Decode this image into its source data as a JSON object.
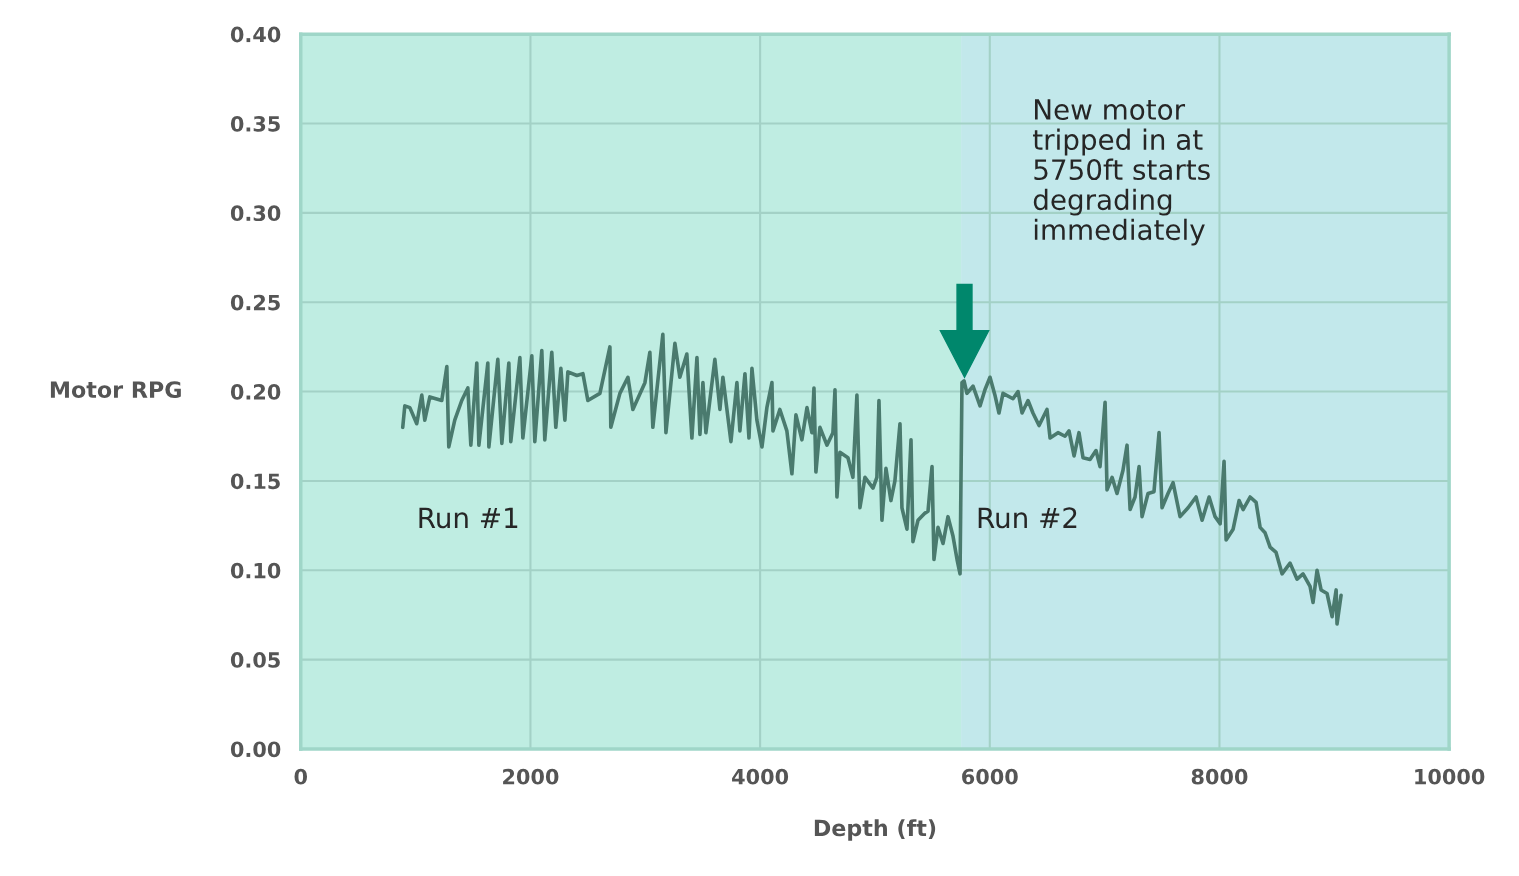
{
  "chart_data": {
    "type": "line",
    "xlabel": "Depth (ft)",
    "ylabel": "Motor RPG",
    "xlim": [
      0,
      10000
    ],
    "xticks": [
      0,
      2000,
      4000,
      6000,
      8000,
      10000
    ],
    "ylim": [
      0,
      0.4
    ],
    "yticks": [
      {
        "value": 0,
        "label": "0.00"
      },
      {
        "value": 0.05,
        "label": "0.05"
      },
      {
        "value": 0.1,
        "label": "0.10"
      },
      {
        "value": 0.15,
        "label": "0.15"
      },
      {
        "value": 0.2,
        "label": "0.20"
      },
      {
        "value": 0.25,
        "label": "0.25"
      },
      {
        "value": 0.3,
        "label": "0.30"
      },
      {
        "value": 0.35,
        "label": "0.35"
      },
      {
        "value": 0.4,
        "label": "0.40"
      }
    ],
    "grid": true,
    "marker": "none",
    "line_style": "solid",
    "bands": [
      {
        "axis": "x",
        "from": 0,
        "to": 5750,
        "color": "#bfede2"
      },
      {
        "axis": "x",
        "from": 5750,
        "to": 10000,
        "color": "#c2e8eb"
      }
    ],
    "annotations": [
      "New motor tripped in at 5750ft starts degrading immediately",
      "Run #1",
      "Run #2"
    ],
    "series": [
      {
        "color": "#4a7a6e",
        "x": [
          888,
          906,
          950,
          1010,
          1054,
          1080,
          1124,
          1228,
          1272,
          1289,
          1341,
          1402,
          1455,
          1481,
          1533,
          1551,
          1629,
          1638,
          1716,
          1751,
          1812,
          1829,
          1908,
          1934,
          2012,
          2038,
          2099,
          2125,
          2186,
          2221,
          2265,
          2300,
          2326,
          2404,
          2457,
          2500,
          2605,
          2692,
          2700,
          2779,
          2849,
          2892,
          2997,
          3040,
          3066,
          3153,
          3180,
          3258,
          3301,
          3362,
          3406,
          3450,
          3476,
          3502,
          3528,
          3606,
          3650,
          3676,
          3746,
          3798,
          3824,
          3868,
          3903,
          3929,
          3972,
          4016,
          4059,
          4103,
          4112,
          4172,
          4233,
          4277,
          4312,
          4364,
          4408,
          4451,
          4469,
          4486,
          4521,
          4582,
          4634,
          4652,
          4669,
          4695,
          4765,
          4808,
          4843,
          4869,
          4913,
          4983,
          5017,
          5035,
          5061,
          5096,
          5139,
          5174,
          5218,
          5235,
          5279,
          5314,
          5331,
          5375,
          5436,
          5462,
          5497,
          5514,
          5549,
          5593,
          5636,
          5680,
          5715,
          5741,
          5758,
          5776,
          5801,
          5854,
          5915,
          5958,
          6002,
          6045,
          6080,
          6115,
          6202,
          6246,
          6281,
          6333,
          6376,
          6429,
          6498,
          6525,
          6594,
          6655,
          6690,
          6734,
          6777,
          6812,
          6873,
          6925,
          6960,
          7004,
          7021,
          7065,
          7108,
          7160,
          7195,
          7222,
          7265,
          7300,
          7326,
          7378,
          7430,
          7474,
          7500,
          7552,
          7596,
          7657,
          7727,
          7796,
          7849,
          7910,
          7962,
          8006,
          8040,
          8058,
          8119,
          8171,
          8206,
          8267,
          8319,
          8354,
          8397,
          8441,
          8493,
          8545,
          8615,
          8676,
          8728,
          8789,
          8815,
          8850,
          8885,
          8937,
          8981,
          9016,
          9024,
          9059
        ],
        "values": [
          0.18,
          0.192,
          0.191,
          0.182,
          0.198,
          0.184,
          0.197,
          0.195,
          0.214,
          0.169,
          0.184,
          0.195,
          0.202,
          0.17,
          0.216,
          0.17,
          0.216,
          0.169,
          0.218,
          0.171,
          0.216,
          0.172,
          0.219,
          0.174,
          0.22,
          0.172,
          0.223,
          0.173,
          0.222,
          0.18,
          0.213,
          0.184,
          0.211,
          0.209,
          0.21,
          0.195,
          0.199,
          0.225,
          0.18,
          0.199,
          0.208,
          0.19,
          0.205,
          0.222,
          0.18,
          0.232,
          0.177,
          0.227,
          0.208,
          0.221,
          0.174,
          0.219,
          0.176,
          0.205,
          0.177,
          0.218,
          0.19,
          0.208,
          0.172,
          0.205,
          0.178,
          0.21,
          0.174,
          0.213,
          0.184,
          0.169,
          0.191,
          0.205,
          0.178,
          0.19,
          0.178,
          0.154,
          0.187,
          0.173,
          0.191,
          0.177,
          0.202,
          0.155,
          0.18,
          0.17,
          0.177,
          0.201,
          0.141,
          0.166,
          0.163,
          0.152,
          0.198,
          0.135,
          0.152,
          0.146,
          0.152,
          0.195,
          0.128,
          0.157,
          0.139,
          0.15,
          0.182,
          0.135,
          0.123,
          0.173,
          0.116,
          0.128,
          0.132,
          0.133,
          0.158,
          0.106,
          0.124,
          0.115,
          0.13,
          0.119,
          0.106,
          0.098,
          0.205,
          0.206,
          0.199,
          0.203,
          0.192,
          0.201,
          0.208,
          0.198,
          0.188,
          0.199,
          0.196,
          0.2,
          0.188,
          0.195,
          0.188,
          0.181,
          0.19,
          0.174,
          0.177,
          0.175,
          0.178,
          0.164,
          0.177,
          0.163,
          0.162,
          0.167,
          0.158,
          0.194,
          0.145,
          0.152,
          0.143,
          0.156,
          0.17,
          0.134,
          0.141,
          0.158,
          0.13,
          0.143,
          0.144,
          0.177,
          0.135,
          0.143,
          0.149,
          0.13,
          0.135,
          0.141,
          0.128,
          0.141,
          0.13,
          0.126,
          0.161,
          0.117,
          0.123,
          0.139,
          0.134,
          0.141,
          0.138,
          0.124,
          0.121,
          0.113,
          0.11,
          0.098,
          0.104,
          0.095,
          0.098,
          0.091,
          0.082,
          0.1,
          0.089,
          0.087,
          0.074,
          0.089,
          0.07,
          0.086
        ]
      }
    ]
  }
}
